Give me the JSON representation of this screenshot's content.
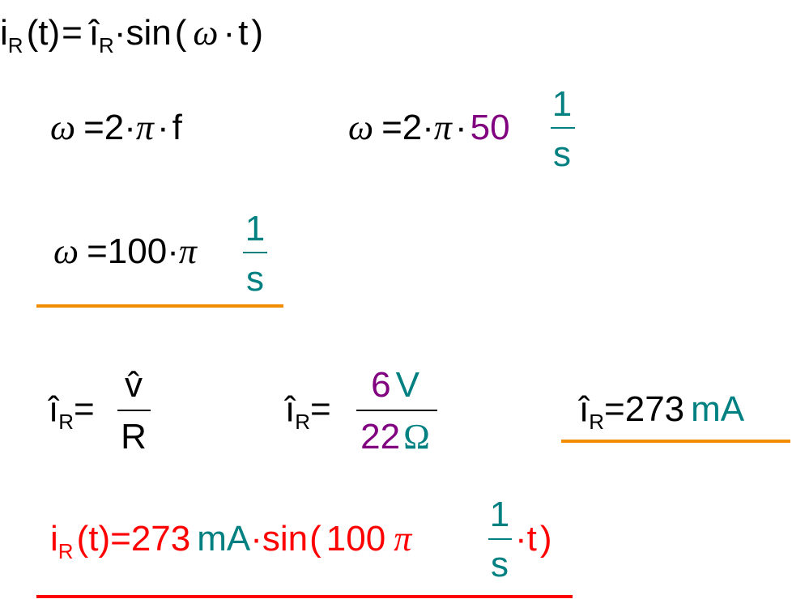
{
  "equations": [
    {
      "tokens": [
        "i",
        "R",
        "(",
        "t",
        ")",
        "=",
        "î",
        "R",
        "·",
        "sin",
        "(",
        "ω",
        "·",
        "t",
        ")"
      ]
    },
    {
      "tokens": [
        "ω",
        "=",
        "2",
        "·",
        "π",
        "·",
        "f"
      ]
    },
    {
      "tokens": [
        "ω",
        "=",
        "2",
        "·",
        "π",
        "·",
        "50"
      ],
      "numerator": [
        "1"
      ],
      "denominator": [
        "s"
      ]
    },
    {
      "tokens": [
        "ω",
        "=",
        "100",
        "·",
        "π"
      ],
      "numerator": [
        "1"
      ],
      "denominator": [
        "s"
      ]
    },
    {
      "tokens": [
        "î",
        "R",
        "="
      ],
      "numerator": [
        "v̂"
      ],
      "denominator": [
        "R"
      ]
    },
    {
      "tokens": [
        "î",
        "R",
        "="
      ],
      "numerator": [
        "6",
        "V"
      ],
      "denominator": [
        "22",
        "Ω"
      ]
    },
    {
      "tokens": [
        "î",
        "R",
        "=",
        "273",
        "mA"
      ]
    },
    {
      "tokens": [
        "i",
        "R",
        "(",
        "t",
        ")",
        "=",
        "273",
        "mA",
        "·",
        "sin",
        "(",
        "100",
        "π"
      ],
      "numerator": [
        "1"
      ],
      "denominator": [
        "s"
      ],
      "tail": [
        "·",
        "t",
        ")"
      ]
    }
  ]
}
